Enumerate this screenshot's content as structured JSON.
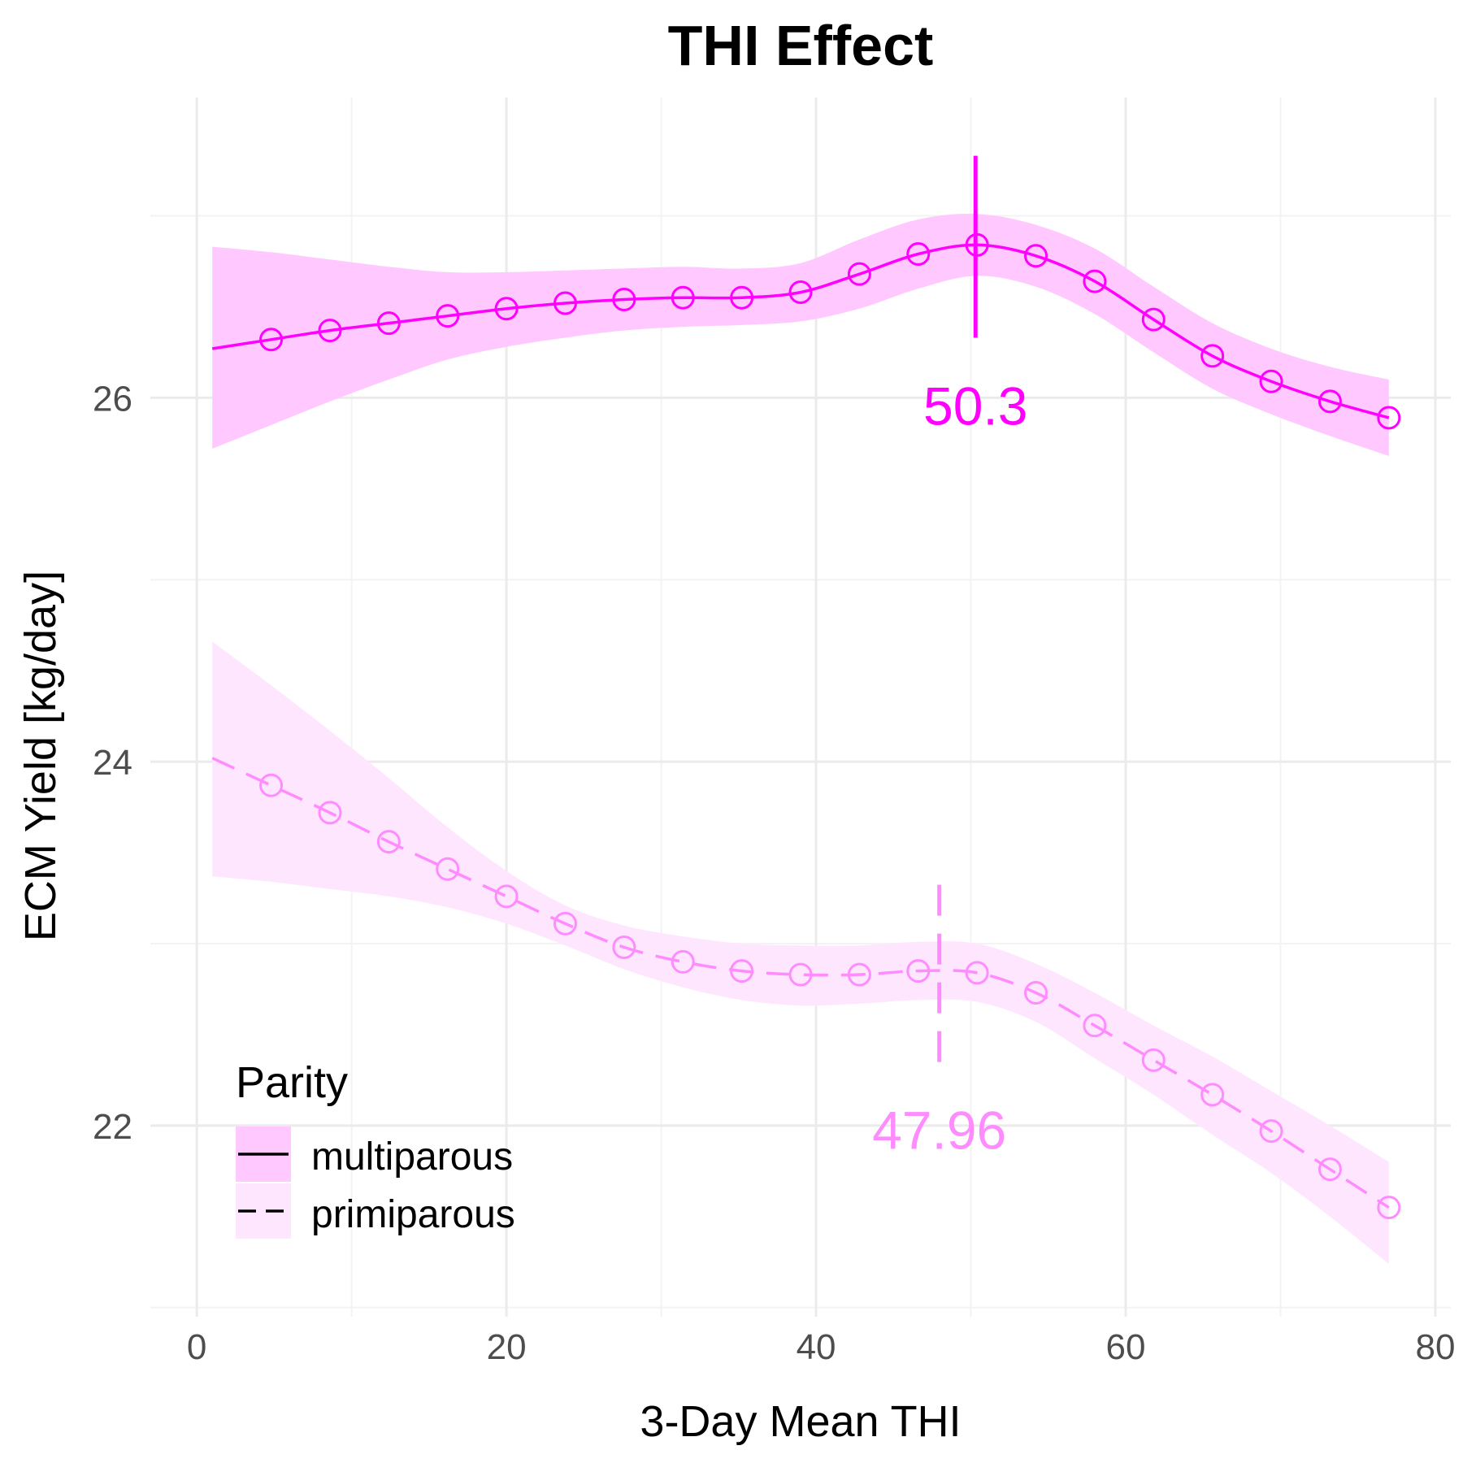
{
  "chart_data": {
    "type": "line",
    "title": "THI Effect",
    "xlabel": "3-Day Mean THI",
    "ylabel": "ECM Yield [kg/day]",
    "xlim": [
      -3,
      81
    ],
    "ylim": [
      20.95,
      27.65
    ],
    "x_ticks": [
      0,
      20,
      40,
      60,
      80
    ],
    "y_ticks": [
      22,
      24,
      26
    ],
    "x_tick_labels": [
      "0",
      "20",
      "40",
      "60",
      "80"
    ],
    "y_tick_labels": [
      "22",
      "24",
      "26"
    ],
    "grid": true,
    "legend": {
      "title": "Parity",
      "position": "bottom-left",
      "entries": [
        "multiparous",
        "primiparous"
      ]
    },
    "series": [
      {
        "name": "multiparous",
        "color": "#ff00ff",
        "band_color": "#ffc8ff",
        "linetype": "solid",
        "x": [
          1,
          4.8,
          8.6,
          12.4,
          16.2,
          20,
          23.8,
          27.6,
          31.4,
          35.2,
          39,
          42.8,
          46.6,
          50.4,
          54.2,
          58,
          61.8,
          65.6,
          69.4,
          73.2,
          77
        ],
        "y": [
          26.27,
          26.32,
          26.37,
          26.41,
          26.45,
          26.49,
          26.52,
          26.54,
          26.55,
          26.55,
          26.58,
          26.68,
          26.79,
          26.84,
          26.78,
          26.64,
          26.43,
          26.23,
          26.09,
          25.98,
          25.89
        ],
        "lower": [
          25.72,
          25.85,
          25.98,
          26.1,
          26.21,
          26.28,
          26.33,
          26.37,
          26.39,
          26.4,
          26.42,
          26.49,
          26.6,
          26.67,
          26.61,
          26.46,
          26.25,
          26.05,
          25.91,
          25.79,
          25.68
        ],
        "upper": [
          26.83,
          26.8,
          26.76,
          26.72,
          26.69,
          26.69,
          26.7,
          26.71,
          26.72,
          26.71,
          26.74,
          26.87,
          26.98,
          27.01,
          26.95,
          26.82,
          26.61,
          26.41,
          26.27,
          26.17,
          26.1
        ],
        "markers": [
          4.8,
          8.6,
          12.4,
          16.2,
          20,
          23.8,
          27.6,
          31.4,
          35.2,
          39,
          42.8,
          46.6,
          50.4,
          54.2,
          58,
          61.8,
          65.6,
          69.4,
          73.2,
          77
        ],
        "vline": {
          "x": 50.3,
          "y_from": 26.33,
          "y_to": 27.33
        },
        "annotation": {
          "text": "50.3",
          "x": 50.3,
          "y": 25.96
        }
      },
      {
        "name": "primiparous",
        "color": "#ff8cff",
        "band_color": "#ffe6ff",
        "linetype": "dashed",
        "x": [
          1,
          4.8,
          8.6,
          12.4,
          16.2,
          20,
          23.8,
          27.6,
          31.4,
          35.2,
          39,
          42.8,
          46.6,
          50.4,
          54.2,
          58,
          61.8,
          65.6,
          69.4,
          73.2,
          77
        ],
        "y": [
          24.02,
          23.87,
          23.72,
          23.56,
          23.41,
          23.26,
          23.11,
          22.98,
          22.9,
          22.85,
          22.83,
          22.83,
          22.85,
          22.84,
          22.73,
          22.55,
          22.36,
          22.17,
          21.97,
          21.76,
          21.55
        ],
        "lower": [
          23.37,
          23.34,
          23.3,
          23.26,
          23.2,
          23.11,
          22.99,
          22.86,
          22.76,
          22.69,
          22.66,
          22.67,
          22.69,
          22.68,
          22.57,
          22.37,
          22.17,
          21.95,
          21.74,
          21.5,
          21.24
        ],
        "upper": [
          24.66,
          24.42,
          24.17,
          23.91,
          23.64,
          23.4,
          23.21,
          23.1,
          23.04,
          23.0,
          22.99,
          22.99,
          23.01,
          23.0,
          22.89,
          22.73,
          22.55,
          22.38,
          22.19,
          22.0,
          21.8
        ],
        "markers": [
          4.8,
          8.6,
          12.4,
          16.2,
          20,
          23.8,
          27.6,
          31.4,
          35.2,
          39,
          42.8,
          46.6,
          50.4,
          54.2,
          58,
          61.8,
          65.6,
          69.4,
          73.2,
          77
        ],
        "vline": {
          "x": 47.96,
          "y_from": 22.35,
          "y_to": 23.35
        },
        "annotation": {
          "text": "47.96",
          "x": 47.96,
          "y": 21.98
        }
      }
    ]
  }
}
